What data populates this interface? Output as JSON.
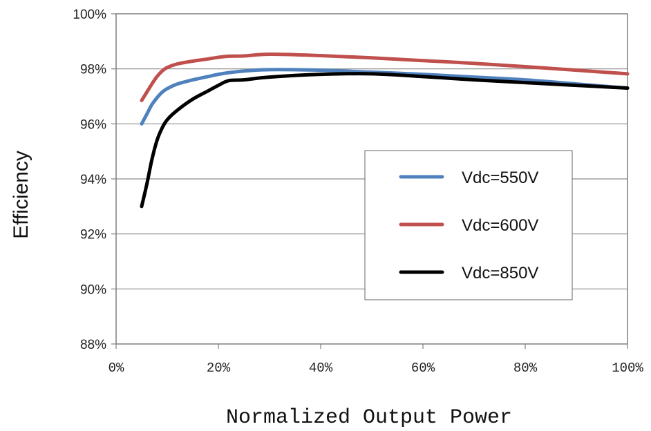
{
  "chart_data": {
    "type": "line",
    "xlabel": "Normalized Output Power",
    "ylabel": "Efficiency",
    "xlim": [
      0,
      100
    ],
    "ylim": [
      88,
      100
    ],
    "x_ticks": [
      0,
      20,
      40,
      60,
      80,
      100
    ],
    "x_tick_labels": [
      "0%",
      "20%",
      "40%",
      "60%",
      "80%",
      "100%"
    ],
    "y_ticks": [
      88,
      90,
      92,
      94,
      96,
      98,
      100
    ],
    "y_tick_labels": [
      "88%",
      "90%",
      "92%",
      "94%",
      "96%",
      "98%",
      "100%"
    ],
    "grid": "horizontal",
    "legend_position": "center-right",
    "series": [
      {
        "name": "Vdc=550V",
        "color": "#4f81bd",
        "x": [
          5,
          6,
          7,
          8,
          9,
          10,
          12,
          15,
          18,
          20,
          22,
          25,
          30,
          40,
          50,
          60,
          70,
          80,
          90,
          100
        ],
        "y": [
          96.0,
          96.35,
          96.7,
          96.95,
          97.15,
          97.28,
          97.45,
          97.6,
          97.72,
          97.8,
          97.86,
          97.92,
          97.97,
          97.95,
          97.88,
          97.8,
          97.7,
          97.6,
          97.45,
          97.3
        ]
      },
      {
        "name": "Vdc=600V",
        "color": "#c0504d",
        "x": [
          5,
          6,
          7,
          8,
          9,
          10,
          12,
          15,
          18,
          20,
          22,
          25,
          30,
          40,
          50,
          60,
          70,
          80,
          90,
          100
        ],
        "y": [
          96.85,
          97.15,
          97.45,
          97.72,
          97.92,
          98.05,
          98.18,
          98.28,
          98.36,
          98.42,
          98.46,
          98.47,
          98.53,
          98.48,
          98.4,
          98.3,
          98.2,
          98.08,
          97.95,
          97.82
        ]
      },
      {
        "name": "Vdc=850V",
        "color": "#000000",
        "x": [
          5,
          6,
          7,
          8,
          9,
          10,
          12,
          15,
          18,
          20,
          22,
          25,
          30,
          40,
          50,
          60,
          70,
          80,
          90,
          100
        ],
        "y": [
          93.0,
          93.8,
          94.7,
          95.4,
          95.85,
          96.15,
          96.5,
          96.9,
          97.2,
          97.4,
          97.57,
          97.6,
          97.7,
          97.8,
          97.82,
          97.72,
          97.6,
          97.5,
          97.4,
          97.3
        ]
      }
    ]
  }
}
